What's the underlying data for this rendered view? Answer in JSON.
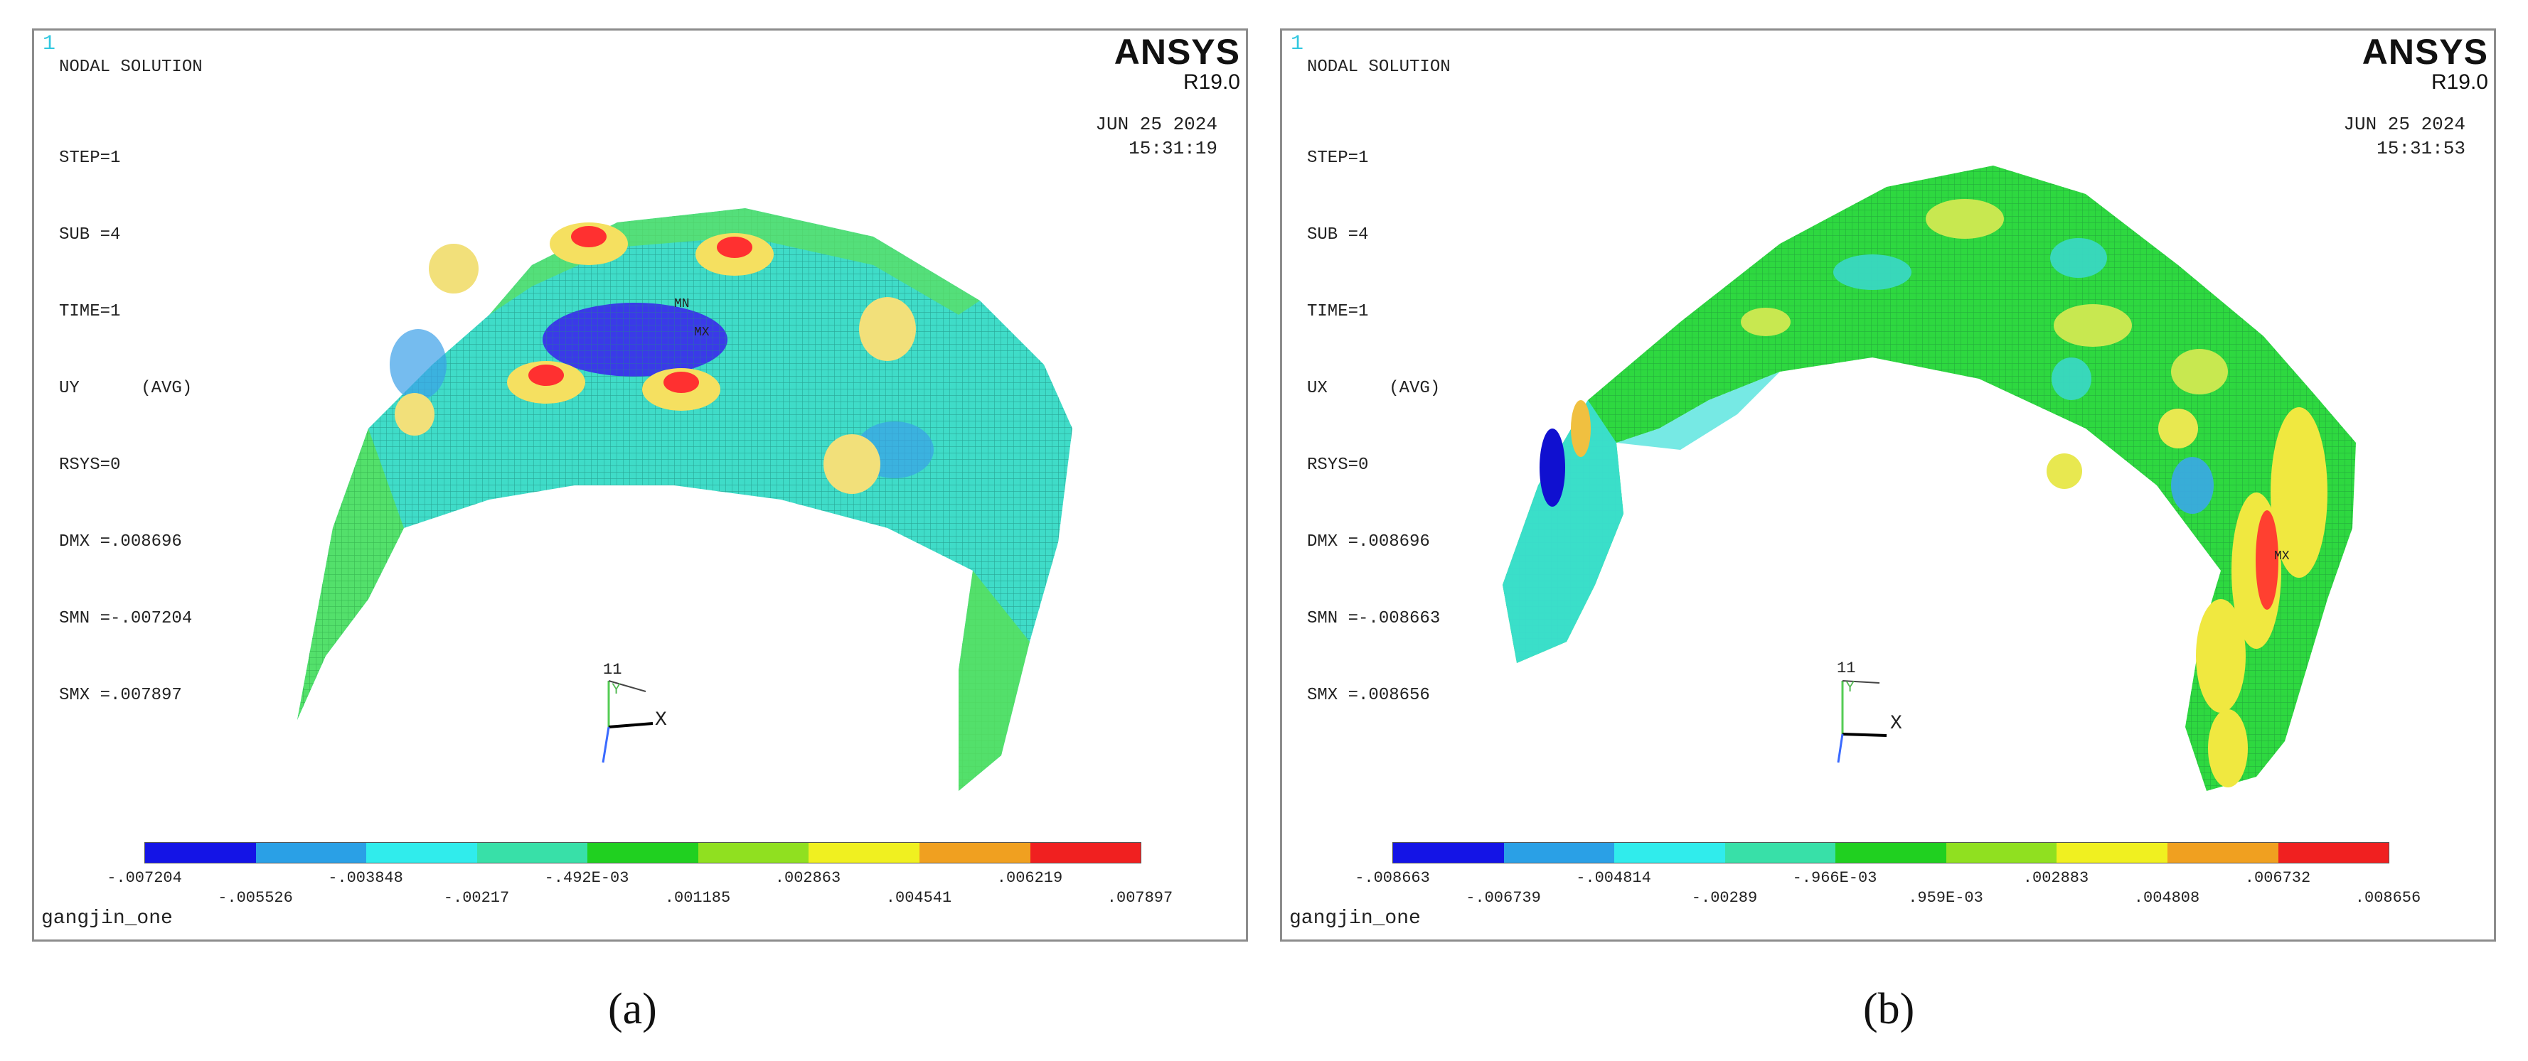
{
  "panels": [
    {
      "win_num": "1",
      "title": "NODAL SOLUTION",
      "info_lines": [
        "STEP=1",
        "SUB =4",
        "TIME=1",
        "UY      (AVG)",
        "RSYS=0",
        "DMX =.008696",
        "SMN =-.007204",
        "SMX =.007897"
      ],
      "brand": "ANSYS",
      "version": "R19.0",
      "date": "JUN 25 2024",
      "time": "15:31:19",
      "legend_top": [
        "-.007204",
        "-.003848",
        "-.492E-03",
        ".002863",
        ".006219"
      ],
      "legend_bottom": [
        "-.005526",
        "-.00217",
        ".001185",
        ".004541",
        ".007897"
      ],
      "filename": "gangjin_one",
      "axis_label": "X",
      "axis_num": "11",
      "axis_y": "Y",
      "marker_mn": "MN",
      "marker_mx": "MX",
      "caption": "(a)"
    },
    {
      "win_num": "1",
      "title": "NODAL SOLUTION",
      "info_lines": [
        "STEP=1",
        "SUB =4",
        "TIME=1",
        "UX      (AVG)",
        "RSYS=0",
        "DMX =.008696",
        "SMN =-.008663",
        "SMX =.008656"
      ],
      "brand": "ANSYS",
      "version": "R19.0",
      "date": "JUN 25 2024",
      "time": "15:31:53",
      "legend_top": [
        "-.008663",
        "-.004814",
        "-.966E-03",
        ".002883",
        ".006732"
      ],
      "legend_bottom": [
        "-.006739",
        "-.00289",
        ".959E-03",
        ".004808",
        ".008656"
      ],
      "filename": "gangjin_one",
      "axis_label": "X",
      "axis_num": "11",
      "axis_y": "Y",
      "marker_mx": "MX",
      "caption": "(b)"
    }
  ],
  "colors": {
    "legend_scale": [
      "#0000ff",
      "#00aaff",
      "#00ffff",
      "#00ffaa",
      "#00ff00",
      "#aaff00",
      "#ffff00",
      "#ffaa00",
      "#ff0000"
    ],
    "mesh_base": "#3fd8c8",
    "mesh_line": "#1a7a6e",
    "frame": "#8c8c8c"
  }
}
